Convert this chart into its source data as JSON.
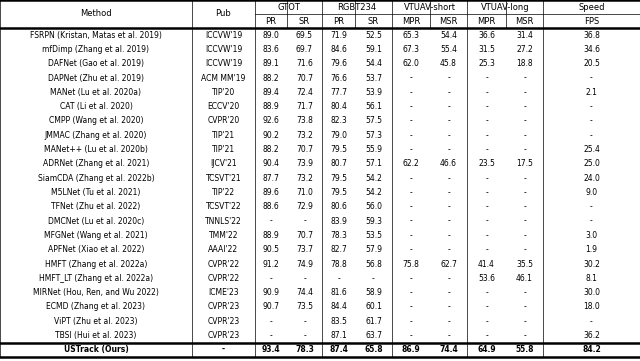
{
  "col_headers_sub": [
    "Method",
    "Pub",
    "PR",
    "SR",
    "PR",
    "SR",
    "MPR",
    "MSR",
    "MPR",
    "MSR",
    "FPS"
  ],
  "col_groups": [
    {
      "label": "GTOT",
      "start": 2,
      "end": 3
    },
    {
      "label": "RGBT234",
      "start": 4,
      "end": 5
    },
    {
      "label": "VTUAV-short",
      "start": 6,
      "end": 7
    },
    {
      "label": "VTUAV-long",
      "start": 8,
      "end": 9
    },
    {
      "label": "Speed",
      "start": 10,
      "end": 10
    }
  ],
  "rows": [
    [
      "FSRPN (Kristan, Matas et al. 2019)",
      "ICCVW'19",
      "89.0",
      "69.5",
      "71.9",
      "52.5",
      "65.3",
      "54.4",
      "36.6",
      "31.4",
      "36.8"
    ],
    [
      "mfDimp (Zhang et al. 2019)",
      "ICCVW'19",
      "83.6",
      "69.7",
      "84.6",
      "59.1",
      "67.3",
      "55.4",
      "31.5",
      "27.2",
      "34.6"
    ],
    [
      "DAFNet (Gao et al. 2019)",
      "ICCVW'19",
      "89.1",
      "71.6",
      "79.6",
      "54.4",
      "62.0",
      "45.8",
      "25.3",
      "18.8",
      "20.5"
    ],
    [
      "DAPNet (Zhu et al. 2019)",
      "ACM MM'19",
      "88.2",
      "70.7",
      "76.6",
      "53.7",
      "-",
      "-",
      "-",
      "-",
      "-"
    ],
    [
      "MANet (Lu et al. 2020a)",
      "TIP'20",
      "89.4",
      "72.4",
      "77.7",
      "53.9",
      "-",
      "-",
      "-",
      "-",
      "2.1"
    ],
    [
      "CAT (Li et al. 2020)",
      "ECCV'20",
      "88.9",
      "71.7",
      "80.4",
      "56.1",
      "-",
      "-",
      "-",
      "-",
      "-"
    ],
    [
      "CMPP (Wang et al. 2020)",
      "CVPR'20",
      "92.6",
      "73.8",
      "82.3",
      "57.5",
      "-",
      "-",
      "-",
      "-",
      "-"
    ],
    [
      "JMMAC (Zhang et al. 2020)",
      "TIP'21",
      "90.2",
      "73.2",
      "79.0",
      "57.3",
      "-",
      "-",
      "-",
      "-",
      "-"
    ],
    [
      "MANet++ (Lu et al. 2020b)",
      "TIP'21",
      "88.2",
      "70.7",
      "79.5",
      "55.9",
      "-",
      "-",
      "-",
      "-",
      "25.4"
    ],
    [
      "ADRNet (Zhang et al. 2021)",
      "IJCV'21",
      "90.4",
      "73.9",
      "80.7",
      "57.1",
      "62.2",
      "46.6",
      "23.5",
      "17.5",
      "25.0"
    ],
    [
      "SiamCDA (Zhang et al. 2022b)",
      "TCSVT'21",
      "87.7",
      "73.2",
      "79.5",
      "54.2",
      "-",
      "-",
      "-",
      "-",
      "24.0"
    ],
    [
      "M5LNet (Tu et al. 2021)",
      "TIP'22",
      "89.6",
      "71.0",
      "79.5",
      "54.2",
      "-",
      "-",
      "-",
      "-",
      "9.0"
    ],
    [
      "TFNet (Zhu et al. 2022)",
      "TCSVT'22",
      "88.6",
      "72.9",
      "80.6",
      "56.0",
      "-",
      "-",
      "-",
      "-",
      "-"
    ],
    [
      "DMCNet (Lu et al. 2020c)",
      "TNNLS'22",
      "-",
      "-",
      "83.9",
      "59.3",
      "-",
      "-",
      "-",
      "-",
      "-"
    ],
    [
      "MFGNet (Wang et al. 2021)",
      "TMM'22",
      "88.9",
      "70.7",
      "78.3",
      "53.5",
      "-",
      "-",
      "-",
      "-",
      "3.0"
    ],
    [
      "APFNet (Xiao et al. 2022)",
      "AAAI'22",
      "90.5",
      "73.7",
      "82.7",
      "57.9",
      "-",
      "-",
      "-",
      "-",
      "1.9"
    ],
    [
      "HMFT (Zhang et al. 2022a)",
      "CVPR'22",
      "91.2",
      "74.9",
      "78.8",
      "56.8",
      "75.8",
      "62.7",
      "41.4",
      "35.5",
      "30.2"
    ],
    [
      "HMFT_LT (Zhang et al. 2022a)",
      "CVPR'22",
      "-",
      "-",
      "-",
      "-",
      "-",
      "-",
      "53.6",
      "46.1",
      "8.1"
    ],
    [
      "MIRNet (Hou, Ren, and Wu 2022)",
      "ICME'23",
      "90.9",
      "74.4",
      "81.6",
      "58.9",
      "-",
      "-",
      "-",
      "-",
      "30.0"
    ],
    [
      "ECMD (Zhang et al. 2023)",
      "CVPR'23",
      "90.7",
      "73.5",
      "84.4",
      "60.1",
      "-",
      "-",
      "-",
      "-",
      "18.0"
    ],
    [
      "ViPT (Zhu et al. 2023)",
      "CVPR'23",
      "-",
      "-",
      "83.5",
      "61.7",
      "-",
      "-",
      "-",
      "-",
      "-"
    ],
    [
      "TBSI (Hui et al. 2023)",
      "CVPR'23",
      "-",
      "-",
      "87.1",
      "63.7",
      "-",
      "-",
      "-",
      "-",
      "36.2"
    ]
  ],
  "last_row": [
    "USTrack (Ours)",
    "-",
    "93.4",
    "78.3",
    "87.4",
    "65.8",
    "86.9",
    "74.4",
    "64.9",
    "55.8",
    "84.2"
  ],
  "bg_color": "#ffffff",
  "font_size": 5.5,
  "header_font_size": 6.0
}
